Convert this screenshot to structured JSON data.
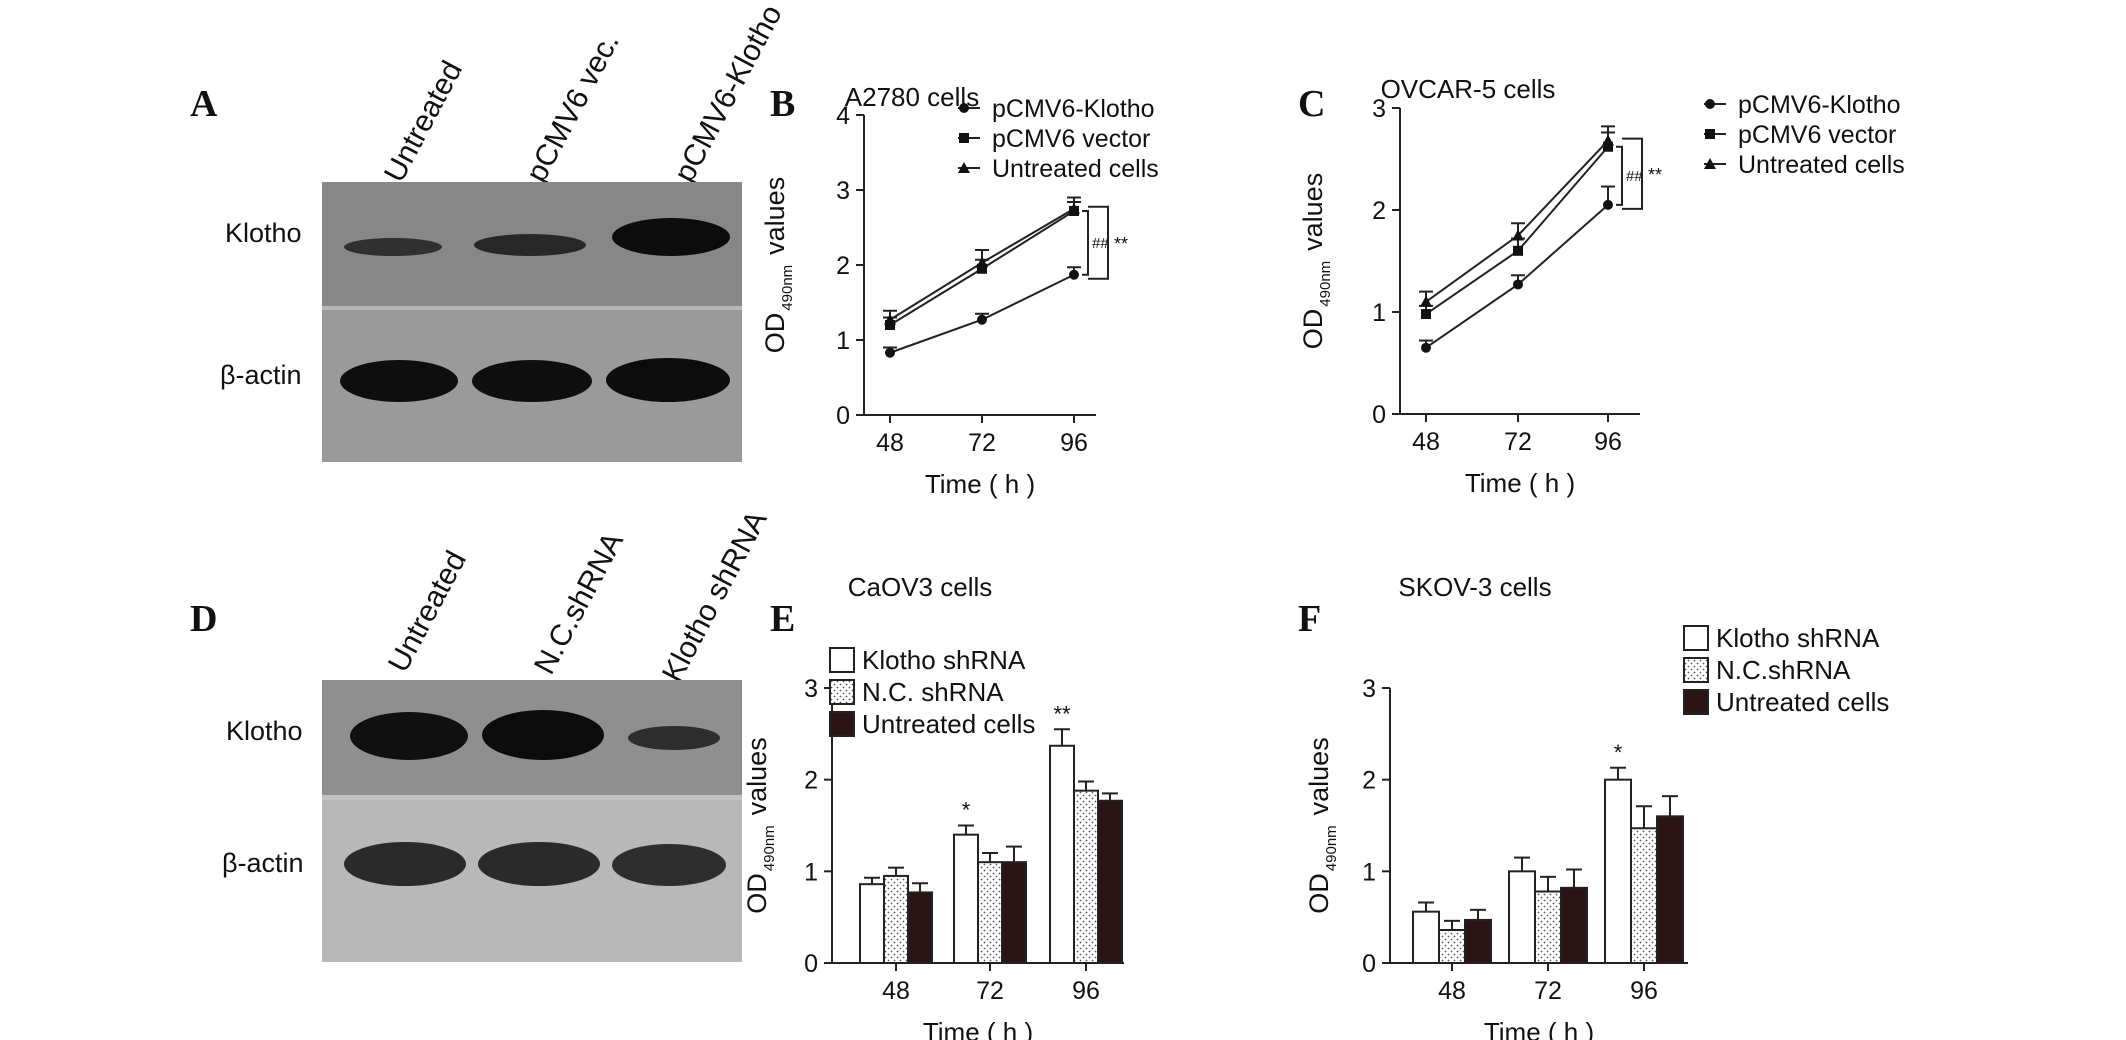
{
  "panels": {
    "A": {
      "letter": "A",
      "lanes": [
        "Untreated",
        "pCMV6 vec.",
        "pCMV6-Klotho"
      ],
      "rows": [
        "Klotho",
        "β-actin"
      ]
    },
    "D": {
      "letter": "D",
      "lanes": [
        "Untreated",
        "N.C.shRNA",
        "Klotho shRNA"
      ],
      "rows": [
        "Klotho",
        "β-actin"
      ]
    }
  },
  "chart_data": [
    {
      "panel": "B",
      "type": "line",
      "title": "A2780 cells",
      "xlabel": "Time ( h )",
      "ylabel": "values",
      "ylabel_main": "OD",
      "ylabel_sub": "490nm",
      "categories": [
        "48",
        "72",
        "96"
      ],
      "ylim": [
        0,
        4
      ],
      "yticks": [
        "0",
        "1",
        "2",
        "3",
        "4"
      ],
      "series": [
        {
          "name": "pCMV6-Klotho",
          "marker": "circle",
          "values": [
            0.83,
            1.27,
            1.87
          ],
          "errors": [
            0.07,
            0.08,
            0.1
          ]
        },
        {
          "name": "pCMV6 vector",
          "marker": "square",
          "values": [
            1.2,
            1.95,
            2.72
          ],
          "errors": [
            0.1,
            0.12,
            0.12
          ]
        },
        {
          "name": "Untreated cells",
          "marker": "triangle",
          "values": [
            1.27,
            2.03,
            2.75
          ],
          "errors": [
            0.12,
            0.17,
            0.15
          ]
        }
      ],
      "significance": [
        "##",
        "**"
      ],
      "legend": "top-right"
    },
    {
      "panel": "C",
      "type": "line",
      "title": "OVCAR-5 cells",
      "xlabel": "Time ( h )",
      "ylabel": "values",
      "ylabel_main": "OD",
      "ylabel_sub": "490nm",
      "categories": [
        "48",
        "72",
        "96"
      ],
      "ylim": [
        0,
        3
      ],
      "yticks": [
        "0",
        "1",
        "2",
        "3"
      ],
      "series": [
        {
          "name": "pCMV6-Klotho",
          "marker": "circle",
          "values": [
            0.65,
            1.27,
            2.05
          ],
          "errors": [
            0.07,
            0.09,
            0.18
          ]
        },
        {
          "name": "pCMV6 vector",
          "marker": "square",
          "values": [
            0.98,
            1.6,
            2.62
          ],
          "errors": [
            0.08,
            0.12,
            0.14
          ]
        },
        {
          "name": "Untreated cells",
          "marker": "triangle",
          "values": [
            1.1,
            1.75,
            2.68
          ],
          "errors": [
            0.1,
            0.12,
            0.14
          ]
        }
      ],
      "significance": [
        "##",
        "**"
      ],
      "legend": "top-right"
    },
    {
      "panel": "E",
      "type": "bar",
      "title": "CaOV3 cells",
      "xlabel": "Time ( h )",
      "ylabel": "values",
      "ylabel_main": "OD",
      "ylabel_sub": "490nm",
      "categories": [
        "48",
        "72",
        "96"
      ],
      "ylim": [
        0,
        3
      ],
      "yticks": [
        "0",
        "1",
        "2",
        "3"
      ],
      "series": [
        {
          "name": "Klotho shRNA",
          "fill": "white",
          "values": [
            0.86,
            1.4,
            2.37
          ],
          "errors": [
            0.07,
            0.1,
            0.18
          ]
        },
        {
          "name": "N.C. shRNA",
          "fill": "dotted",
          "values": [
            0.95,
            1.1,
            1.88
          ],
          "errors": [
            0.09,
            0.1,
            0.1
          ]
        },
        {
          "name": "Untreated cells",
          "fill": "dark",
          "values": [
            0.77,
            1.1,
            1.77
          ],
          "errors": [
            0.1,
            0.17,
            0.08
          ]
        }
      ],
      "annotations": [
        "",
        "*",
        "**"
      ],
      "legend": "top-left"
    },
    {
      "panel": "F",
      "type": "bar",
      "title": "SKOV-3 cells",
      "xlabel": "Time ( h )",
      "ylabel": "values",
      "ylabel_main": "OD",
      "ylabel_sub": "490nm",
      "categories": [
        "48",
        "72",
        "96"
      ],
      "ylim": [
        0,
        3
      ],
      "yticks": [
        "0",
        "1",
        "2",
        "3"
      ],
      "series": [
        {
          "name": "Klotho shRNA",
          "fill": "white",
          "values": [
            0.56,
            1.0,
            2.0
          ],
          "errors": [
            0.1,
            0.15,
            0.13
          ]
        },
        {
          "name": "N.C.shRNA",
          "fill": "dotted",
          "values": [
            0.36,
            0.78,
            1.47
          ],
          "errors": [
            0.1,
            0.16,
            0.24
          ]
        },
        {
          "name": "Untreated cells",
          "fill": "dark",
          "values": [
            0.47,
            0.82,
            1.6
          ],
          "errors": [
            0.11,
            0.2,
            0.22
          ]
        }
      ],
      "annotations": [
        "",
        "",
        "*"
      ],
      "legend": "top-right"
    }
  ]
}
